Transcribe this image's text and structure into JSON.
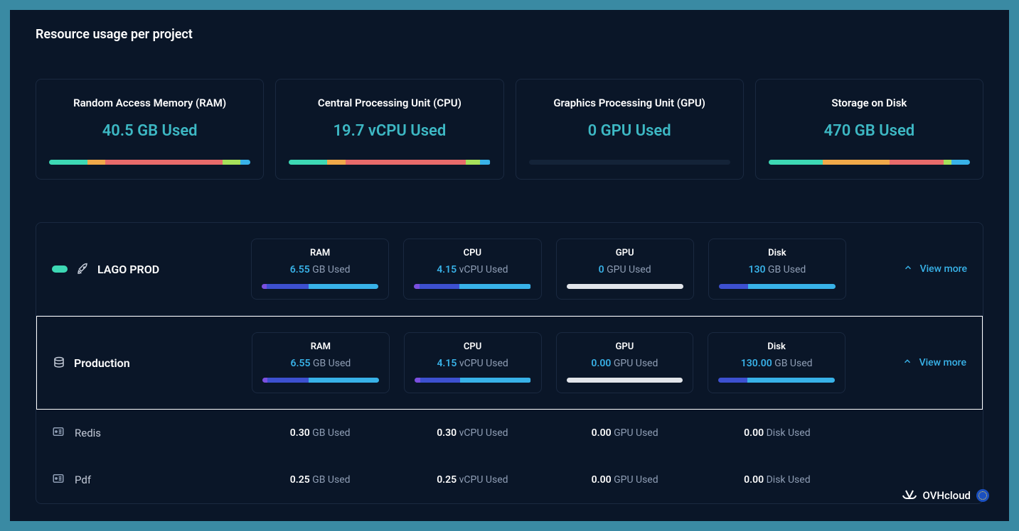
{
  "colors": {
    "page_bg": "#3a8aa3",
    "panel_bg": "#0a1628",
    "card_border": "#1a2940",
    "text_white": "#ffffff",
    "text_muted": "#8f9eb5",
    "accent": "#38b2e8",
    "summary_value": "#3db8c4",
    "seg_green": "#3dd8b4",
    "seg_orange": "#f0a94a",
    "seg_red": "#e86b6b",
    "seg_lime": "#a6e05a",
    "seg_blue": "#38b2e8",
    "bar_track": "#142338",
    "bar_track_light": "#e2e5ea",
    "seg_purple": "#7a4fe0",
    "seg_indigo": "#3d50d0",
    "seg_cyan": "#38b2e8"
  },
  "section_title": "Resource usage per project",
  "summary": [
    {
      "title": "Random Access Memory (RAM)",
      "value": "40.5 GB Used",
      "segments": [
        {
          "color": "#3dd8b4",
          "pct": 19
        },
        {
          "color": "#f0a94a",
          "pct": 9
        },
        {
          "color": "#e86b6b",
          "pct": 58
        },
        {
          "color": "#a6e05a",
          "pct": 9
        },
        {
          "color": "#38b2e8",
          "pct": 5
        }
      ]
    },
    {
      "title": "Central Processing Unit (CPU)",
      "value": "19.7 vCPU Used",
      "segments": [
        {
          "color": "#3dd8b4",
          "pct": 19
        },
        {
          "color": "#f0a94a",
          "pct": 9
        },
        {
          "color": "#e86b6b",
          "pct": 60
        },
        {
          "color": "#a6e05a",
          "pct": 7
        },
        {
          "color": "#38b2e8",
          "pct": 5
        }
      ]
    },
    {
      "title": "Graphics Processing Unit (GPU)",
      "value": "0 GPU Used",
      "segments": []
    },
    {
      "title": "Storage on Disk",
      "value": "470 GB Used",
      "segments": [
        {
          "color": "#3dd8b4",
          "pct": 27
        },
        {
          "color": "#f0a94a",
          "pct": 33
        },
        {
          "color": "#e86b6b",
          "pct": 27
        },
        {
          "color": "#a6e05a",
          "pct": 4
        },
        {
          "color": "#38b2e8",
          "pct": 9
        }
      ]
    }
  ],
  "projects": [
    {
      "name": "LAGO PROD",
      "icon": "rocket",
      "highlighted": false,
      "metrics": [
        {
          "label": "RAM",
          "num": "6.55",
          "unit": "GB Used",
          "bar": {
            "track": "dark",
            "segments": [
              {
                "color": "#7a4fe0",
                "pct": 4
              },
              {
                "color": "#3d50d0",
                "pct": 36
              },
              {
                "color": "#38b2e8",
                "pct": 60
              }
            ]
          }
        },
        {
          "label": "CPU",
          "num": "4.15",
          "unit": "vCPU Used",
          "bar": {
            "track": "dark",
            "segments": [
              {
                "color": "#7a4fe0",
                "pct": 5
              },
              {
                "color": "#3d50d0",
                "pct": 34
              },
              {
                "color": "#38b2e8",
                "pct": 61
              }
            ]
          }
        },
        {
          "label": "GPU",
          "num": "0",
          "unit": "GPU Used",
          "bar": {
            "track": "light",
            "segments": []
          }
        },
        {
          "label": "Disk",
          "num": "130",
          "unit": "GB Used",
          "bar": {
            "track": "dark",
            "segments": [
              {
                "color": "#3d50d0",
                "pct": 25
              },
              {
                "color": "#38b2e8",
                "pct": 75
              }
            ]
          }
        }
      ],
      "view_more": "View more"
    },
    {
      "name": "Production",
      "icon": "database",
      "highlighted": true,
      "metrics": [
        {
          "label": "RAM",
          "num": "6.55",
          "unit": "GB Used",
          "bar": {
            "track": "dark",
            "segments": [
              {
                "color": "#7a4fe0",
                "pct": 4
              },
              {
                "color": "#3d50d0",
                "pct": 36
              },
              {
                "color": "#38b2e8",
                "pct": 60
              }
            ]
          }
        },
        {
          "label": "CPU",
          "num": "4.15",
          "unit": "vCPU Used",
          "bar": {
            "track": "dark",
            "segments": [
              {
                "color": "#7a4fe0",
                "pct": 5
              },
              {
                "color": "#3d50d0",
                "pct": 34
              },
              {
                "color": "#38b2e8",
                "pct": 61
              }
            ]
          }
        },
        {
          "label": "GPU",
          "num": "0.00",
          "unit": "GPU Used",
          "bar": {
            "track": "light",
            "segments": []
          }
        },
        {
          "label": "Disk",
          "num": "130.00",
          "unit": "GB Used",
          "bar": {
            "track": "dark",
            "segments": [
              {
                "color": "#3d50d0",
                "pct": 25
              },
              {
                "color": "#38b2e8",
                "pct": 75
              }
            ]
          }
        }
      ],
      "view_more": "View more"
    }
  ],
  "services": [
    {
      "name": "Redis",
      "metrics": [
        {
          "num": "0.30",
          "unit": "GB Used"
        },
        {
          "num": "0.30",
          "unit": "vCPU Used"
        },
        {
          "num": "0.00",
          "unit": "GPU Used"
        },
        {
          "num": "0.00",
          "unit": "Disk Used"
        }
      ]
    },
    {
      "name": "Pdf",
      "metrics": [
        {
          "num": "0.25",
          "unit": "GB Used"
        },
        {
          "num": "0.25",
          "unit": "vCPU Used"
        },
        {
          "num": "0.00",
          "unit": "GPU Used"
        },
        {
          "num": "0.00",
          "unit": "Disk Used"
        }
      ]
    }
  ],
  "brand": "OVHcloud"
}
